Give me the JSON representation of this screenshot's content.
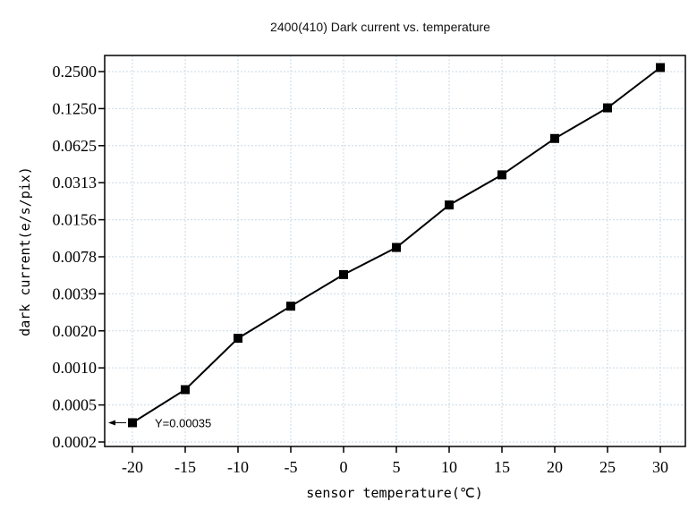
{
  "chart_data": {
    "type": "line",
    "title": "2400(410) Dark current vs. temperature",
    "xlabel": "sensor temperature(℃)",
    "ylabel": "dark current(e/s/pix)",
    "y_scale": "log2",
    "grid": true,
    "x_ticks": [
      "-20",
      "-15",
      "-10",
      "-5",
      "0",
      "5",
      "10",
      "15",
      "20",
      "25",
      "30"
    ],
    "y_ticks": [
      {
        "value": 0.000244,
        "label": "0.0002"
      },
      {
        "value": 0.000488,
        "label": "0.0005"
      },
      {
        "value": 0.000977,
        "label": "0.0010"
      },
      {
        "value": 0.001953,
        "label": "0.0020"
      },
      {
        "value": 0.003906,
        "label": "0.0039"
      },
      {
        "value": 0.007813,
        "label": "0.0078"
      },
      {
        "value": 0.015625,
        "label": "0.0156"
      },
      {
        "value": 0.03125,
        "label": "0.0313"
      },
      {
        "value": 0.0625,
        "label": "0.0625"
      },
      {
        "value": 0.125,
        "label": "0.1250"
      },
      {
        "value": 0.25,
        "label": "0.2500"
      }
    ],
    "series": [
      {
        "x": [
          -20,
          -15,
          -10,
          -5,
          0,
          5,
          10,
          15,
          20,
          25,
          30
        ],
        "y": [
          0.00035,
          0.00065,
          0.0017,
          0.0031,
          0.0056,
          0.0093,
          0.0206,
          0.0362,
          0.0715,
          0.1268,
          0.2695
        ]
      }
    ],
    "annotation": {
      "text": "Y=0.00035",
      "x": -20,
      "y": 0.00035
    }
  }
}
